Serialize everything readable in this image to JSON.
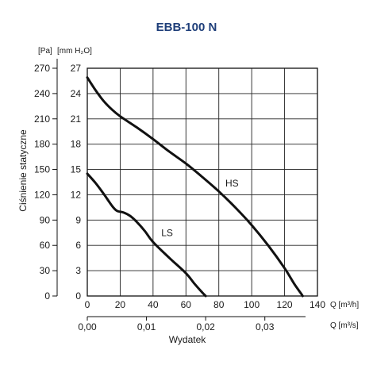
{
  "chart_data": {
    "type": "line",
    "title": "EBB-100 N",
    "y_left_unit_label": "[Pa]",
    "y_right_unit_label": "[mm H₂O]",
    "ylabel": "Ciśnienie statyczne",
    "xlabel": "Wydatek",
    "x_top_unit_label": "Q [m³/h]",
    "x_bottom_unit_label": "Q [m³/s]",
    "xlim": [
      0,
      140
    ],
    "ylim": [
      0,
      270
    ],
    "ylim_mmH2O": [
      0,
      27
    ],
    "x_ticks": [
      "0",
      "20",
      "40",
      "60",
      "80",
      "100",
      "120",
      "140"
    ],
    "x2_ticks": [
      "0,00",
      "0,01",
      "0,02",
      "0,03"
    ],
    "x2_tick_values": [
      0.0,
      0.01,
      0.02,
      0.03
    ],
    "y_ticks_pa": [
      "0",
      "30",
      "60",
      "90",
      "120",
      "150",
      "180",
      "210",
      "240",
      "270"
    ],
    "y_ticks_mm": [
      "0",
      "3",
      "6",
      "9",
      "12",
      "15",
      "18",
      "21",
      "24",
      "27"
    ],
    "grid": true,
    "series": [
      {
        "name": "HS",
        "x": [
          0,
          5,
          10,
          15,
          20,
          30,
          40,
          50,
          60,
          70,
          80,
          90,
          100,
          110,
          120,
          126,
          130,
          131
        ],
        "y": [
          259,
          244,
          231,
          221,
          213,
          200,
          186,
          171,
          157,
          141,
          124,
          105,
          84,
          60,
          33,
          14,
          3,
          0
        ]
      },
      {
        "name": "LS",
        "x": [
          0,
          5,
          10,
          15,
          18,
          22,
          26,
          30,
          35,
          40,
          50,
          60,
          65,
          70,
          72
        ],
        "y": [
          145,
          134,
          121,
          107,
          101,
          99,
          95,
          88,
          77,
          64,
          45,
          27,
          15,
          4,
          0
        ]
      }
    ],
    "series_label_positions": [
      {
        "name": "HS",
        "x": 84,
        "y": 130
      },
      {
        "name": "LS",
        "x": 45,
        "y": 71
      }
    ]
  }
}
